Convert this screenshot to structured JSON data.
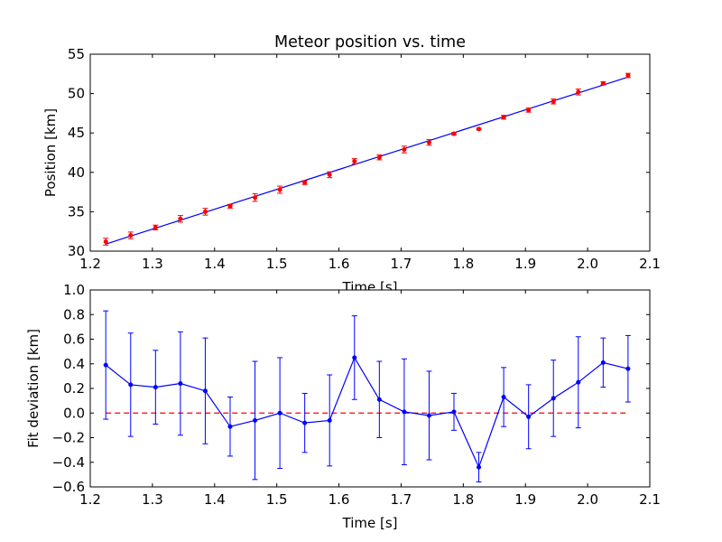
{
  "chart_data": [
    {
      "type": "scatter",
      "title": "Meteor position vs. time",
      "xlabel": "Time [s]",
      "ylabel": "Position [km]",
      "xlim": [
        1.2,
        2.1
      ],
      "ylim": [
        30,
        55
      ],
      "xticks": [
        "1.2",
        "1.3",
        "1.4",
        "1.5",
        "1.6",
        "1.7",
        "1.8",
        "1.9",
        "2.0",
        "2.1"
      ],
      "yticks": [
        "30",
        "35",
        "40",
        "45",
        "50",
        "55"
      ],
      "series": [
        {
          "kind": "points-with-errorbars",
          "color": "#ff0000",
          "x": [
            1.225,
            1.265,
            1.305,
            1.345,
            1.385,
            1.425,
            1.465,
            1.505,
            1.545,
            1.585,
            1.625,
            1.665,
            1.705,
            1.745,
            1.785,
            1.825,
            1.865,
            1.905,
            1.945,
            1.985,
            2.025,
            2.065
          ],
          "y": [
            31.2,
            32.0,
            33.0,
            34.1,
            35.0,
            35.7,
            36.8,
            37.8,
            38.7,
            39.7,
            41.4,
            41.9,
            42.9,
            43.8,
            44.9,
            45.5,
            47.0,
            47.9,
            49.0,
            50.2,
            51.3,
            52.3
          ],
          "yerr": [
            0.44,
            0.42,
            0.3,
            0.42,
            0.43,
            0.24,
            0.48,
            0.45,
            0.24,
            0.37,
            0.34,
            0.31,
            0.43,
            0.36,
            0.15,
            0.12,
            0.24,
            0.26,
            0.31,
            0.37,
            0.2,
            0.27
          ]
        },
        {
          "kind": "fit-line",
          "color": "#0000ff",
          "x": [
            1.225,
            2.065
          ],
          "y": [
            30.9,
            52.1
          ]
        }
      ]
    },
    {
      "type": "line",
      "title": "",
      "xlabel": "Time [s]",
      "ylabel": "Fit deviation [km]",
      "xlim": [
        1.2,
        2.1
      ],
      "ylim": [
        -0.6,
        1.0
      ],
      "xticks": [
        "1.2",
        "1.3",
        "1.4",
        "1.5",
        "1.6",
        "1.7",
        "1.8",
        "1.9",
        "2.0",
        "2.1"
      ],
      "yticks": [
        "−0.6",
        "−0.4",
        "−0.2",
        "0.0",
        "0.2",
        "0.4",
        "0.6",
        "0.8",
        "1.0"
      ],
      "series": [
        {
          "kind": "line-with-errorbars",
          "color": "#0000ff",
          "x": [
            1.225,
            1.265,
            1.305,
            1.345,
            1.385,
            1.425,
            1.465,
            1.505,
            1.545,
            1.585,
            1.625,
            1.665,
            1.705,
            1.745,
            1.785,
            1.825,
            1.865,
            1.905,
            1.945,
            1.985,
            2.025,
            2.065
          ],
          "y": [
            0.39,
            0.23,
            0.21,
            0.24,
            0.18,
            -0.11,
            -0.06,
            0.0,
            -0.08,
            -0.06,
            0.45,
            0.11,
            0.01,
            -0.02,
            0.01,
            -0.44,
            0.13,
            -0.03,
            0.12,
            0.25,
            0.41,
            0.36
          ],
          "yerr": [
            0.44,
            0.42,
            0.3,
            0.42,
            0.43,
            0.24,
            0.48,
            0.45,
            0.24,
            0.37,
            0.34,
            0.31,
            0.43,
            0.36,
            0.15,
            0.12,
            0.24,
            0.26,
            0.31,
            0.37,
            0.2,
            0.27
          ]
        },
        {
          "kind": "zero-reference",
          "color": "#ff0000",
          "style": "dashed",
          "x": [
            1.225,
            2.065
          ],
          "y": [
            0.0,
            0.0
          ]
        }
      ]
    }
  ]
}
